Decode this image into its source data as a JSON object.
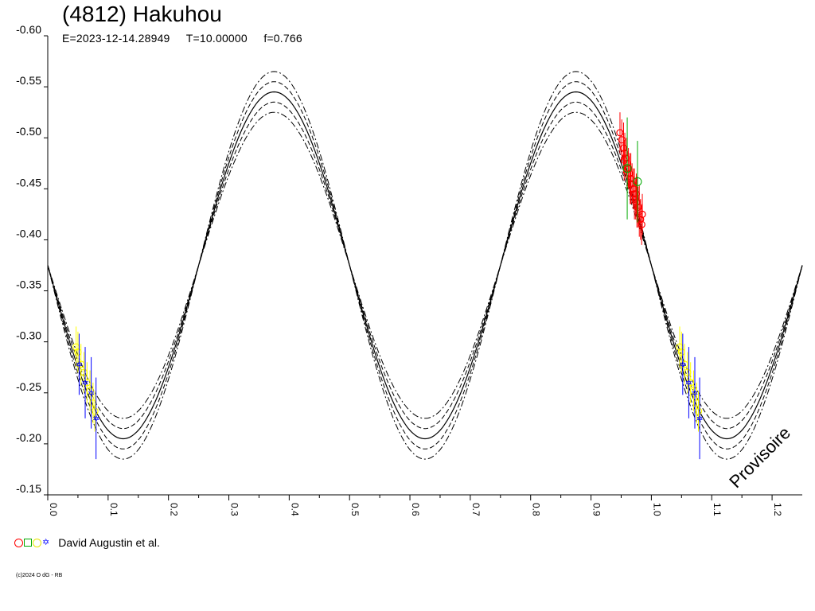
{
  "header": {
    "title": "(4812) Hakuhou",
    "epoch": "E=2023-12-14.28949",
    "period": "T=10.00000",
    "fraction": "f=0.766"
  },
  "legend": {
    "symbols": [
      "circle-icon",
      "square-icon",
      "diamond-icon",
      "star-icon"
    ],
    "symbol_colors": [
      "#ff0000",
      "#00aa00",
      "#ffff00",
      "#0000ff"
    ],
    "observer": "David Augustin et al."
  },
  "watermark": "Provisoire",
  "credit": "(c)2024 O dG - RB",
  "chart_data": {
    "type": "scatter",
    "title": "(4812) Hakuhou",
    "xlim": [
      0.0,
      1.25
    ],
    "ylim": [
      -0.15,
      -0.6
    ],
    "y_inverted": true,
    "x_ticks": [
      "0.0",
      "0.1",
      "0.2",
      "0.3",
      "0.4",
      "0.5",
      "0.6",
      "0.7",
      "0.8",
      "0.9",
      "1.0",
      "1.1",
      "1.2"
    ],
    "y_ticks": [
      "-0.60",
      "-0.55",
      "-0.50",
      "-0.45",
      "-0.40",
      "-0.35",
      "-0.30",
      "-0.25",
      "-0.20",
      "-0.15"
    ],
    "model": {
      "mean": -0.375,
      "amplitude": 0.17,
      "phase_of_minimum": 0.125,
      "envelope_offset": 0.01,
      "envelope_outer_offset": 0.02
    },
    "series": [
      {
        "color": "#ff0000",
        "points": [
          {
            "x": 0.948,
            "y": -0.505,
            "err": 0.02
          },
          {
            "x": 0.951,
            "y": -0.498,
            "err": 0.02
          },
          {
            "x": 0.954,
            "y": -0.49,
            "err": 0.025
          },
          {
            "x": 0.956,
            "y": -0.485,
            "err": 0.02
          },
          {
            "x": 0.958,
            "y": -0.48,
            "err": 0.02
          },
          {
            "x": 0.96,
            "y": -0.475,
            "err": 0.025
          },
          {
            "x": 0.962,
            "y": -0.47,
            "err": 0.02
          },
          {
            "x": 0.964,
            "y": -0.465,
            "err": 0.02
          },
          {
            "x": 0.966,
            "y": -0.46,
            "err": 0.025
          },
          {
            "x": 0.968,
            "y": -0.455,
            "err": 0.02
          },
          {
            "x": 0.97,
            "y": -0.45,
            "err": 0.02
          },
          {
            "x": 0.972,
            "y": -0.445,
            "err": 0.025
          },
          {
            "x": 0.974,
            "y": -0.44,
            "err": 0.02
          },
          {
            "x": 0.976,
            "y": -0.437,
            "err": 0.025
          },
          {
            "x": 0.978,
            "y": -0.432,
            "err": 0.02
          },
          {
            "x": 0.98,
            "y": -0.428,
            "err": 0.025
          },
          {
            "x": 0.982,
            "y": -0.42,
            "err": 0.02
          },
          {
            "x": 0.984,
            "y": -0.415,
            "err": 0.02
          },
          {
            "x": 0.955,
            "y": -0.478,
            "err": 0.02
          },
          {
            "x": 0.965,
            "y": -0.455,
            "err": 0.02
          },
          {
            "x": 0.975,
            "y": -0.445,
            "err": 0.02
          },
          {
            "x": 0.985,
            "y": -0.425,
            "err": 0.02
          }
        ]
      },
      {
        "color": "#00aa00",
        "points": [
          {
            "x": 0.96,
            "y": -0.47,
            "err": 0.05
          },
          {
            "x": 0.977,
            "y": -0.457,
            "err": 0.04
          }
        ]
      },
      {
        "color": "#ffff00",
        "points": [
          {
            "x": 0.047,
            "y": -0.295,
            "err": 0.02
          },
          {
            "x": 0.05,
            "y": -0.29,
            "err": 0.02
          },
          {
            "x": 0.055,
            "y": -0.278,
            "err": 0.02
          },
          {
            "x": 0.06,
            "y": -0.27,
            "err": 0.02
          },
          {
            "x": 0.065,
            "y": -0.26,
            "err": 0.02
          },
          {
            "x": 0.07,
            "y": -0.252,
            "err": 0.02
          },
          {
            "x": 0.075,
            "y": -0.24,
            "err": 0.02
          },
          {
            "x": 0.078,
            "y": -0.232,
            "err": 0.02
          },
          {
            "x": 1.047,
            "y": -0.295,
            "err": 0.02
          },
          {
            "x": 1.05,
            "y": -0.29,
            "err": 0.02
          },
          {
            "x": 1.055,
            "y": -0.278,
            "err": 0.02
          },
          {
            "x": 1.06,
            "y": -0.27,
            "err": 0.02
          },
          {
            "x": 1.065,
            "y": -0.26,
            "err": 0.02
          },
          {
            "x": 1.07,
            "y": -0.252,
            "err": 0.02
          },
          {
            "x": 1.075,
            "y": -0.24,
            "err": 0.02
          },
          {
            "x": 1.078,
            "y": -0.232,
            "err": 0.02
          }
        ]
      },
      {
        "color": "#0000ff",
        "points": [
          {
            "x": 0.052,
            "y": -0.278,
            "err": 0.03
          },
          {
            "x": 0.062,
            "y": -0.26,
            "err": 0.035
          },
          {
            "x": 0.072,
            "y": -0.25,
            "err": 0.035
          },
          {
            "x": 0.08,
            "y": -0.225,
            "err": 0.04
          },
          {
            "x": 1.052,
            "y": -0.278,
            "err": 0.03
          },
          {
            "x": 1.062,
            "y": -0.26,
            "err": 0.035
          },
          {
            "x": 1.072,
            "y": -0.25,
            "err": 0.035
          },
          {
            "x": 1.08,
            "y": -0.225,
            "err": 0.04
          }
        ]
      }
    ],
    "grid": false,
    "legend_position": "bottom-left"
  }
}
